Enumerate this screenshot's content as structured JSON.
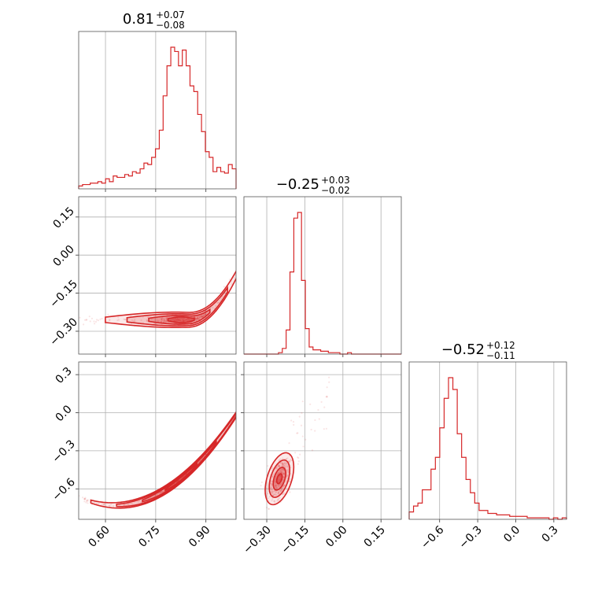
{
  "chart_data": {
    "type": "corner",
    "color": "#d62728",
    "parameters": [
      {
        "title": {
          "median": "0.81",
          "plus": "+0.07",
          "minus": "−0.08"
        },
        "range": [
          0.52,
          0.99
        ],
        "ticks": [
          0.6,
          0.75,
          0.9
        ],
        "tick_labels": [
          "0.60",
          "0.75",
          "0.90"
        ],
        "hist_counts": [
          2,
          3,
          3,
          4,
          4,
          5,
          4,
          7,
          5,
          9,
          8,
          8,
          10,
          9,
          12,
          11,
          14,
          18,
          17,
          22,
          28,
          41,
          65,
          86,
          99,
          96,
          86,
          97,
          86,
          72,
          68,
          52,
          40,
          26,
          22,
          12,
          15,
          12,
          11,
          17,
          14
        ],
        "hist_bins": 41
      },
      {
        "title": {
          "median": "−0.25",
          "plus": "+0.03",
          "minus": "−0.02"
        },
        "range": [
          -0.39,
          0.23
        ],
        "ticks": [
          -0.3,
          -0.15,
          0.0,
          0.15
        ],
        "tick_labels": [
          "−0.30",
          "−0.15",
          "0.00",
          "0.15"
        ],
        "hist_counts": [
          0,
          0,
          0,
          0,
          0,
          0,
          0,
          0,
          0,
          1,
          4,
          17,
          58,
          96,
          100,
          52,
          18,
          5,
          3,
          3,
          2,
          2,
          1,
          1,
          1,
          0,
          0,
          1,
          0,
          0,
          0,
          0,
          0,
          0,
          0,
          0,
          0,
          0,
          0,
          0,
          0
        ],
        "hist_bins": 41
      },
      {
        "title": {
          "median": "−0.52",
          "plus": "+0.12",
          "minus": "−0.11"
        },
        "range": [
          -0.84,
          0.4
        ],
        "ticks": [
          -0.6,
          -0.3,
          0.0,
          0.3
        ],
        "tick_labels": [
          "−0.6",
          "−0.3",
          "0.0",
          "0.3"
        ],
        "hist_counts": [
          5,
          9,
          11,
          20,
          20,
          34,
          42,
          62,
          82,
          96,
          88,
          58,
          42,
          27,
          18,
          11,
          6,
          6,
          4,
          4,
          3,
          3,
          3,
          2,
          2,
          2,
          2,
          1,
          1,
          1,
          1,
          1,
          0,
          1,
          0,
          1
        ],
        "hist_bins": 36
      }
    ],
    "pairs": [
      {
        "x": 0,
        "y": 1,
        "shape": "relation",
        "spread": 0.009,
        "mu_x": 0.83,
        "sd_x": 0.045,
        "contour": "filled-levels"
      },
      {
        "x": 0,
        "y": 2,
        "shape": "relation",
        "spread": 0.01,
        "mu_x": 0.83,
        "sd_x": 0.045,
        "contour": "filled-levels"
      },
      {
        "x": 1,
        "y": 2,
        "shape": "gaussian",
        "mu": [
          -0.25,
          -0.52
        ],
        "sd": [
          0.022,
          0.08
        ],
        "rho": 0.45,
        "contour": "filled-levels"
      }
    ],
    "grid": true
  }
}
